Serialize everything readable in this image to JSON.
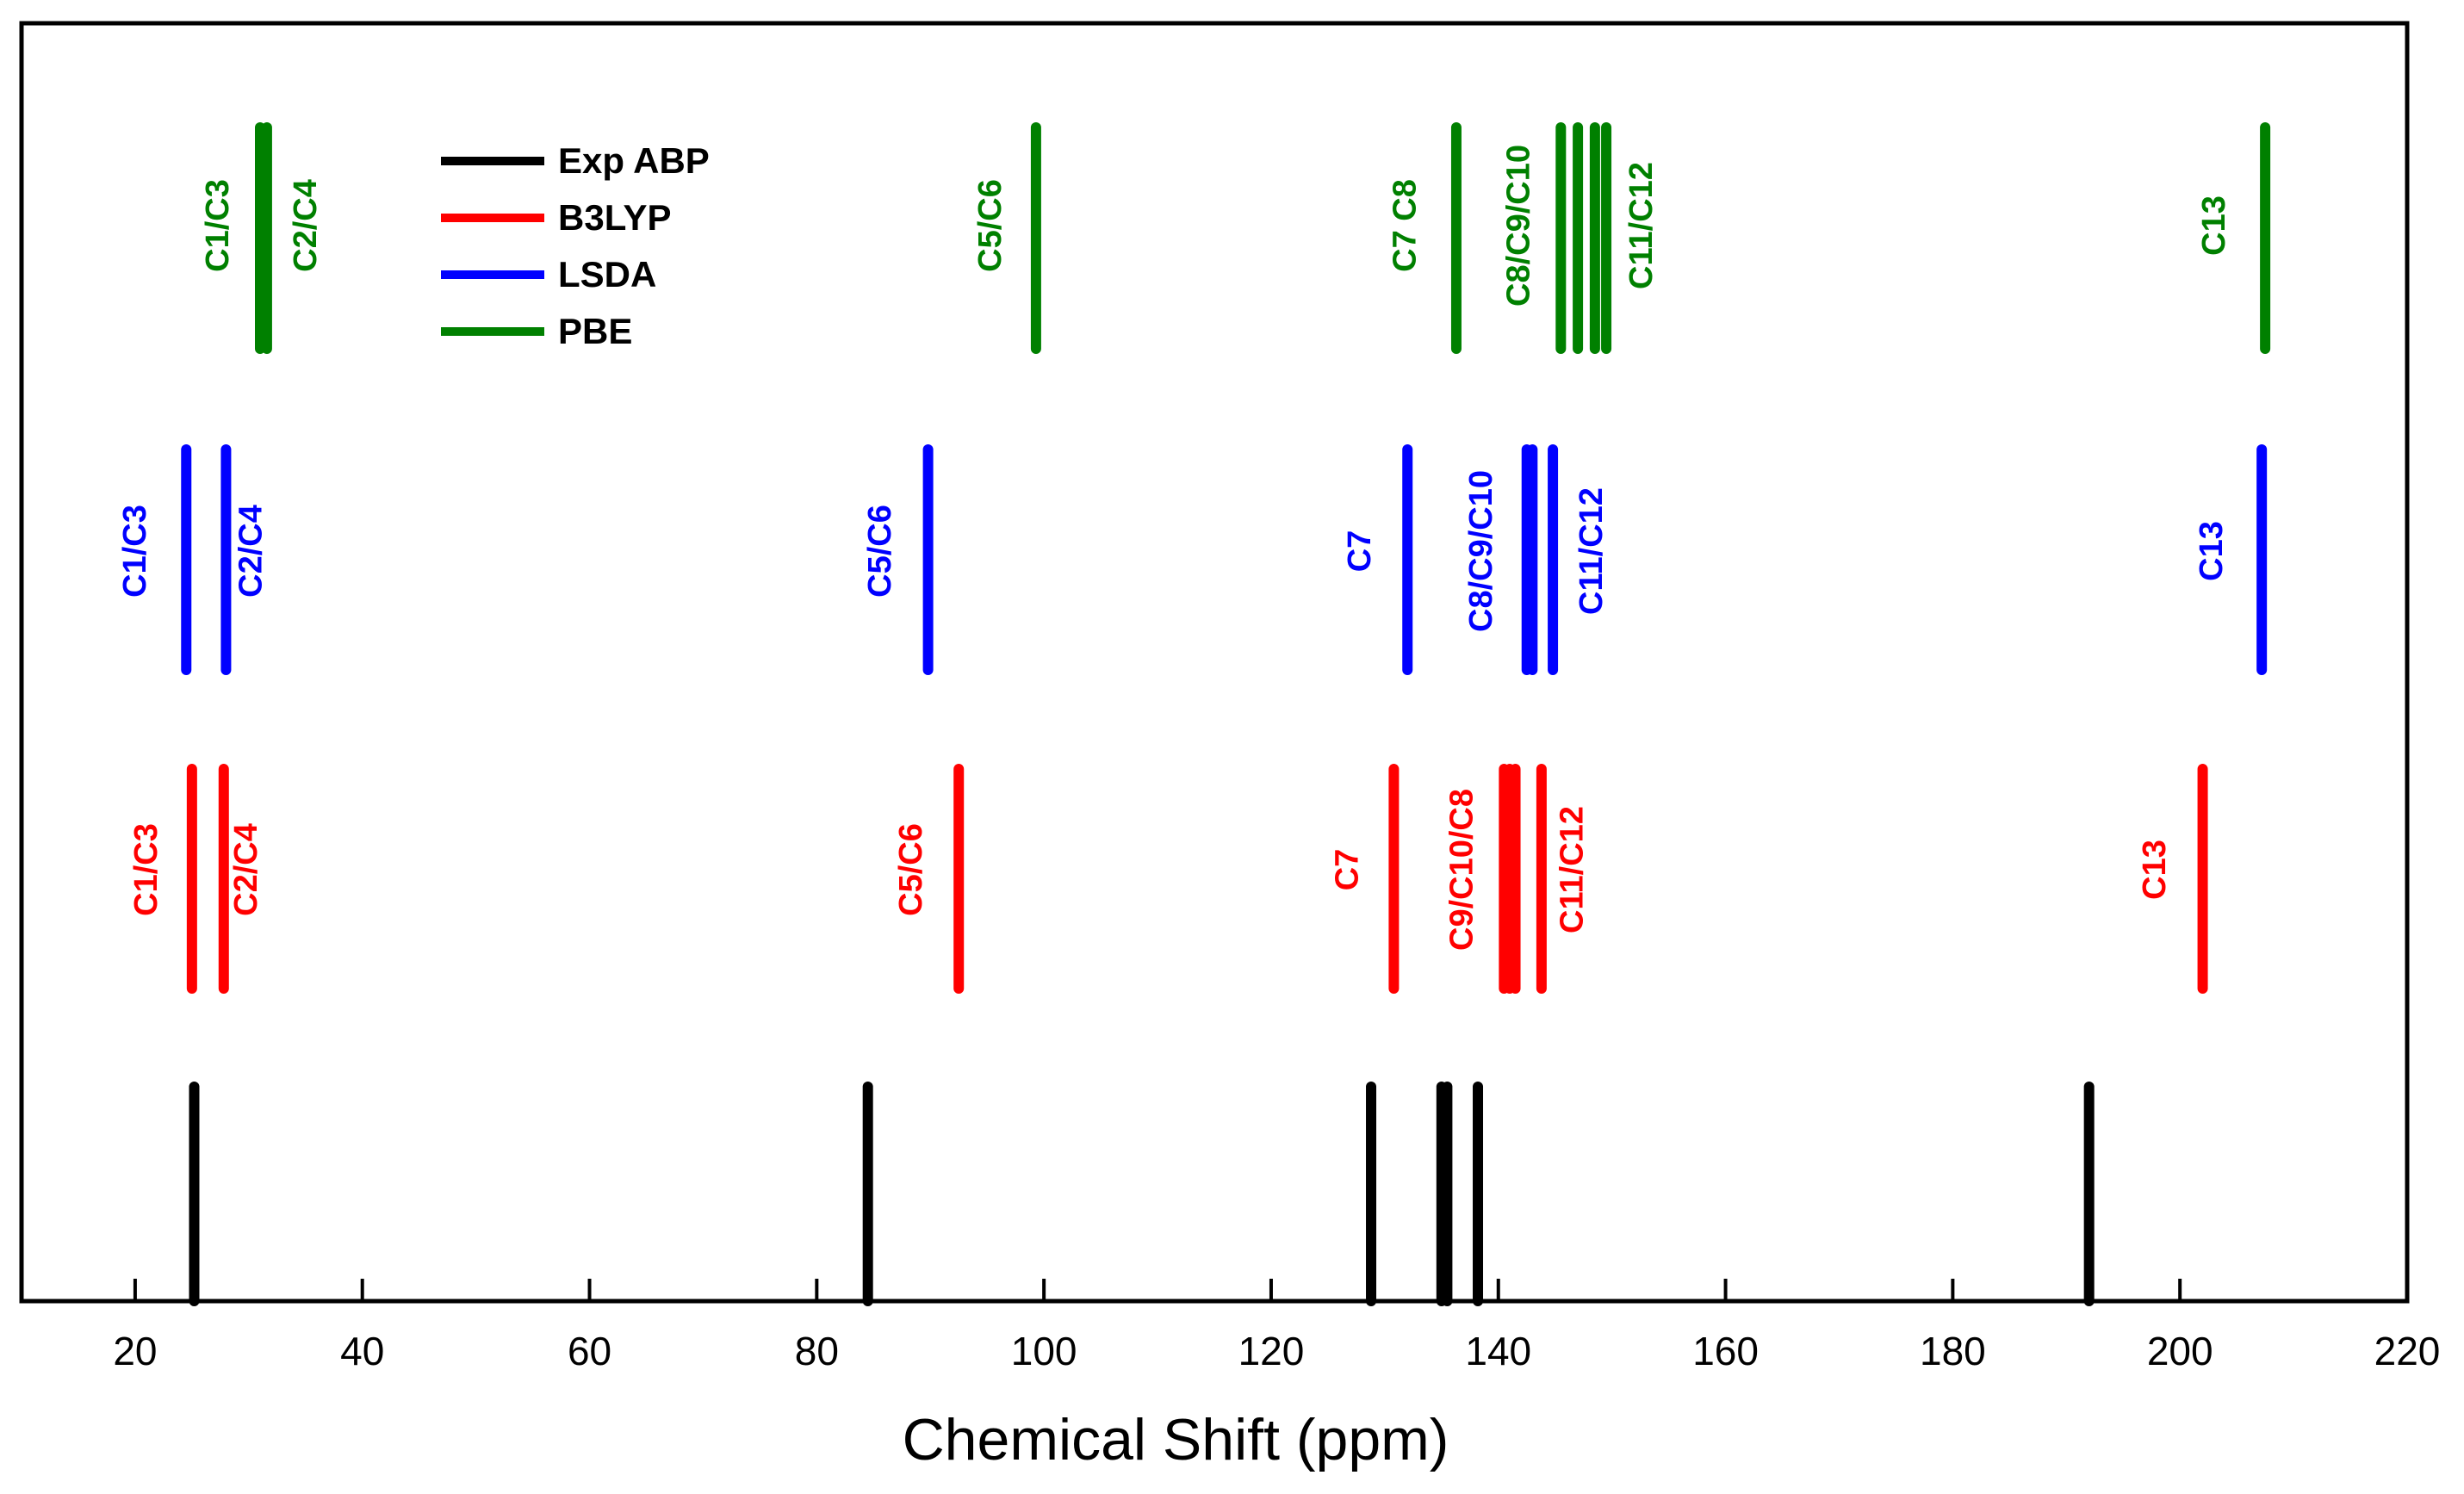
{
  "chart_data": {
    "type": "stick-spectrum",
    "title": "",
    "xlabel": "Chemical Shift (ppm)",
    "ylabel": "",
    "xlim": [
      10,
      220
    ],
    "xticks": [
      20,
      40,
      60,
      80,
      100,
      120,
      140,
      160,
      180,
      200,
      220
    ],
    "xtick_labels": [
      "20",
      "40",
      "60",
      "80",
      "100",
      "120",
      "140",
      "160",
      "180",
      "200",
      "220"
    ],
    "grid": false,
    "legend_position": "top-left",
    "series": [
      {
        "name": "Exp ABP",
        "color": "#000000",
        "peaks": [
          25.2,
          84.5,
          128.8,
          135.0,
          135.5,
          138.2,
          192.0
        ],
        "labels": []
      },
      {
        "name": "B3LYP",
        "color": "#ff0000",
        "peaks": [
          25.0,
          27.8,
          92.5,
          130.8,
          140.5,
          141.0,
          141.5,
          143.8,
          202.0
        ],
        "labels": [
          {
            "text": "C1/C3",
            "x": 21.0
          },
          {
            "text": "C2/C4",
            "x": 29.8
          },
          {
            "text": "C5/C6",
            "x": 88.3
          },
          {
            "text": "C7",
            "x": 126.7
          },
          {
            "text": "C9/C10/C8",
            "x": 136.8
          },
          {
            "text": "C11/C12",
            "x": 146.5
          },
          {
            "text": "C13",
            "x": 197.8
          }
        ]
      },
      {
        "name": "LSDA",
        "color": "#0000ff",
        "peaks": [
          24.5,
          28.0,
          89.8,
          132.0,
          142.5,
          143.0,
          144.8,
          207.2
        ],
        "labels": [
          {
            "text": "C1/C3",
            "x": 20.0
          },
          {
            "text": "C2/C4",
            "x": 30.2
          },
          {
            "text": "C5/C6",
            "x": 85.6
          },
          {
            "text": "C7",
            "x": 127.8
          },
          {
            "text": "C8/C9/C10",
            "x": 138.5
          },
          {
            "text": "C11/C12",
            "x": 148.2
          },
          {
            "text": "C13",
            "x": 202.8
          }
        ]
      },
      {
        "name": "PBE",
        "color": "#008000",
        "peaks": [
          31.0,
          31.6,
          99.3,
          136.3,
          145.5,
          147.0,
          148.5,
          149.5,
          207.5
        ],
        "labels": [
          {
            "text": "C1/C3",
            "x": 27.3
          },
          {
            "text": "C2/C4",
            "x": 35.0
          },
          {
            "text": "C5/C6",
            "x": 95.3
          },
          {
            "text": "C7 C8",
            "x": 131.8
          },
          {
            "text": "C8/C9/C10",
            "x": 141.8
          },
          {
            "text": "C11/C12",
            "x": 152.6
          },
          {
            "text": "C13",
            "x": 203.0
          }
        ]
      }
    ]
  }
}
